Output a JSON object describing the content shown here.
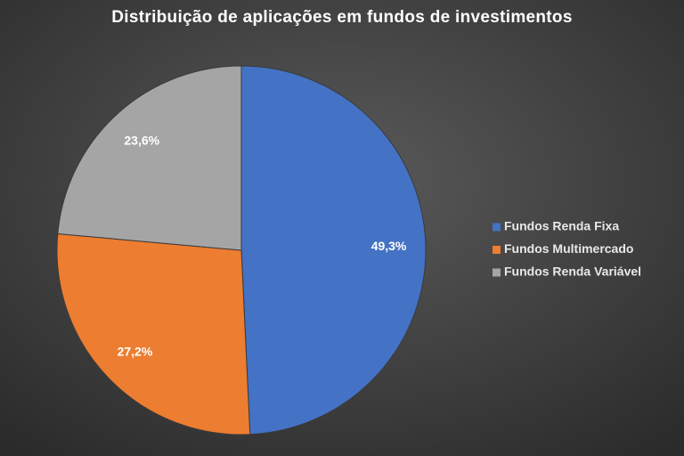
{
  "chart_data": {
    "type": "pie",
    "title": "Distribuição de aplicações em fundos de investimentos",
    "categories": [
      "Fundos Renda Fixa",
      "Fundos Multimercado",
      "Fundos Renda Variável"
    ],
    "values": [
      49.3,
      27.2,
      23.6
    ],
    "value_labels": [
      "49,3%",
      "27,2%",
      "23,6%"
    ],
    "colors": [
      "#4472c4",
      "#ed7d31",
      "#a5a5a5"
    ],
    "legend": "right"
  }
}
